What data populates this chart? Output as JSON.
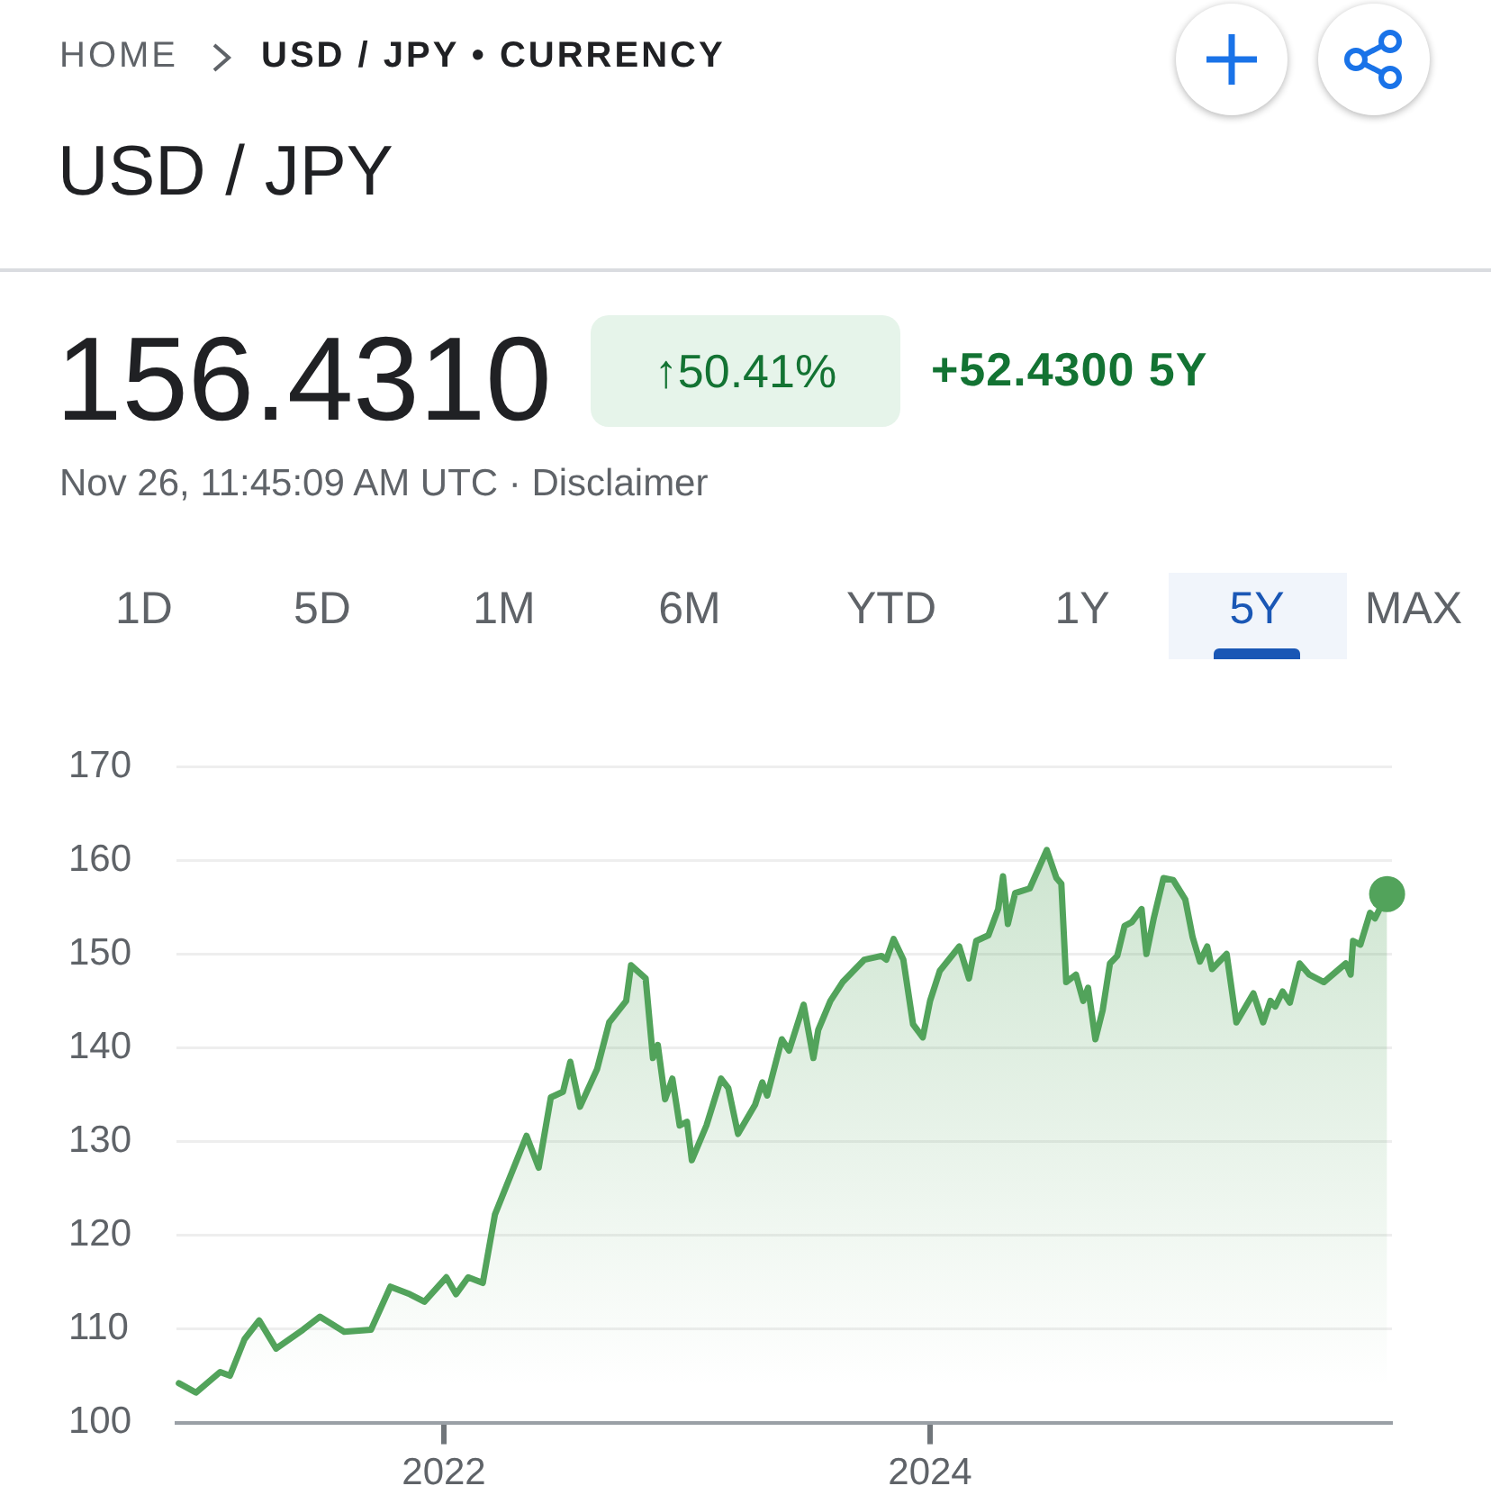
{
  "chart_data": {
    "type": "area",
    "title": "USD / JPY",
    "annotations": [
      "HOME",
      "USD / JPY • CURRENCY",
      "156.4310",
      "↑50.41%",
      "+52.4300 5Y",
      "Nov 26, 11:45:09 AM UTC · Disclaimer",
      "1D",
      "5D",
      "1M",
      "6M",
      "YTD",
      "1Y",
      "5Y",
      "MAX"
    ],
    "series": [
      {
        "color": "#52a35b",
        "x": [
          2020.91,
          2020.98,
          2021.08,
          2021.12,
          2021.18,
          2021.24,
          2021.31,
          2021.42,
          2021.49,
          2021.59,
          2021.7,
          2021.78,
          2021.86,
          2021.92,
          2022.01,
          2022.05,
          2022.1,
          2022.16,
          2022.21,
          2022.34,
          2022.39,
          2022.44,
          2022.49,
          2022.52,
          2022.56,
          2022.63,
          2022.68,
          2022.75,
          2022.77,
          2022.83,
          2022.86,
          2022.88,
          2022.91,
          2022.94,
          2022.97,
          2023.0,
          2023.02,
          2023.08,
          2023.14,
          2023.17,
          2023.21,
          2023.28,
          2023.31,
          2023.33,
          2023.39,
          2023.42,
          2023.48,
          2023.52,
          2023.54,
          2023.59,
          2023.64,
          2023.73,
          2023.8,
          2023.82,
          2023.85,
          2023.89,
          2023.93,
          2023.97,
          2024.0,
          2024.04,
          2024.12,
          2024.16,
          2024.19,
          2024.24,
          2024.28,
          2024.3,
          2024.32,
          2024.35,
          2024.41,
          2024.48,
          2024.52,
          2024.54,
          2024.56,
          2024.6,
          2024.63,
          2024.65,
          2024.68,
          2024.71,
          2024.74,
          2024.77,
          2024.8,
          2024.83,
          2024.87,
          2024.89,
          2024.92,
          2024.96,
          2025.0,
          2025.05,
          2025.08,
          2025.11,
          2025.14,
          2025.16,
          2025.22,
          2025.26,
          2025.33,
          2025.37,
          2025.4,
          2025.42,
          2025.45,
          2025.48,
          2025.52,
          2025.56,
          2025.62,
          2025.71,
          2025.73,
          2025.74,
          2025.77,
          2025.81,
          2025.83,
          2025.88
        ],
        "values": [
          104.2,
          103.2,
          105.4,
          105,
          108.9,
          110.9,
          107.9,
          109.9,
          111.3,
          109.7,
          109.9,
          114.5,
          113.7,
          112.9,
          115.5,
          113.7,
          115.5,
          114.9,
          122.2,
          130.6,
          127.2,
          134.7,
          135.3,
          138.5,
          133.7,
          137.7,
          142.7,
          145,
          148.8,
          147.4,
          138.9,
          140.3,
          134.5,
          136.7,
          131.7,
          132.1,
          128,
          131.7,
          136.7,
          135.7,
          130.8,
          133.9,
          136.3,
          134.9,
          140.9,
          139.7,
          144.6,
          138.9,
          141.9,
          145,
          147,
          149.4,
          149.8,
          149.4,
          151.6,
          149.4,
          142.5,
          141.1,
          145,
          148.2,
          150.8,
          147.4,
          151.4,
          152,
          154.8,
          158.3,
          153.2,
          156.5,
          157,
          161.1,
          158.1,
          157.5,
          147,
          147.8,
          145,
          146.4,
          140.9,
          144,
          149,
          149.8,
          153,
          153.4,
          154.8,
          150,
          153.8,
          158.1,
          157.9,
          155.8,
          151.8,
          149.2,
          150.8,
          148.4,
          150,
          142.7,
          145.8,
          142.7,
          145,
          144.4,
          146,
          144.8,
          149,
          147.8,
          147,
          149,
          147.8,
          151.4,
          151,
          154.4,
          153.8,
          156.4
        ]
      }
    ],
    "xlim": [
      2020.9,
      2025.9
    ],
    "xticks": [
      2022,
      2024
    ],
    "ylim": [
      100,
      170
    ],
    "yticks": [
      100,
      110,
      120,
      130,
      140,
      150,
      160,
      170
    ],
    "grid": "y"
  }
}
